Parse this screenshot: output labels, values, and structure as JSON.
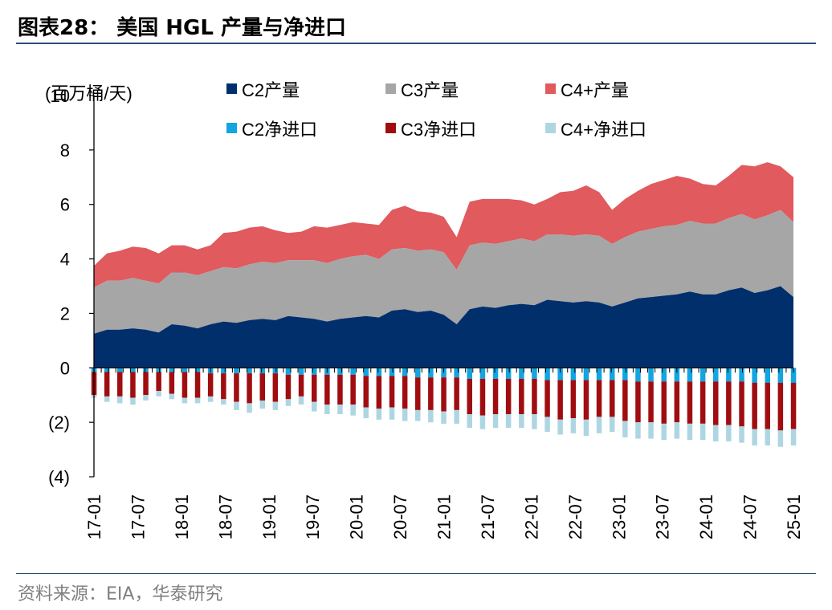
{
  "title": "图表28：  美国 HGL 产量与净进口",
  "source": "资料来源：EIA，华泰研究",
  "colors": {
    "c2_prod": "#002f6c",
    "c3_prod": "#a6a6a6",
    "c4_prod": "#e05a5e",
    "c2_import": "#12a5e0",
    "c3_import": "#a00d10",
    "c4_import": "#aed6e2",
    "rule": "#2a4e7a"
  },
  "chart_data": {
    "type": "area",
    "ylabel": "(百万桶/天)",
    "ylim": [
      -4,
      10
    ],
    "y_ticks": [
      10,
      8,
      6,
      4,
      2,
      0,
      -2,
      -4
    ],
    "y_tick_labels": [
      "10",
      "8",
      "6",
      "4",
      "2",
      "0",
      "(2)",
      "(4)"
    ],
    "x_tick_labels": [
      "17-01",
      "17-07",
      "18-01",
      "18-07",
      "19-01",
      "19-07",
      "20-01",
      "20-07",
      "21-01",
      "21-07",
      "22-01",
      "22-07",
      "23-01",
      "23-07",
      "24-01",
      "24-07",
      "25-01"
    ],
    "legend": [
      "C2产量",
      "C3产量",
      "C4+产量",
      "C2净进口",
      "C3净进口",
      "C4+净进口"
    ],
    "x_start": "2017-01",
    "period": "monthly",
    "series": [
      {
        "name": "C2产量",
        "kind": "area",
        "values": [
          1.25,
          1.4,
          1.4,
          1.45,
          1.4,
          1.3,
          1.6,
          1.55,
          1.45,
          1.6,
          1.7,
          1.65,
          1.75,
          1.8,
          1.75,
          1.9,
          1.85,
          1.8,
          1.7,
          1.8,
          1.85,
          1.9,
          1.85,
          2.1,
          2.15,
          2.05,
          2.1,
          1.95,
          1.6,
          2.15,
          2.25,
          2.2,
          2.3,
          2.35,
          2.3,
          2.5,
          2.45,
          2.4,
          2.45,
          2.4,
          2.25,
          2.4,
          2.55,
          2.6,
          2.65,
          2.7,
          2.8,
          2.7,
          2.7,
          2.85,
          2.95,
          2.75,
          2.85,
          3.0,
          2.6
        ]
      },
      {
        "name": "C3产量",
        "kind": "area",
        "values": [
          1.7,
          1.8,
          1.8,
          1.85,
          1.8,
          1.8,
          1.9,
          1.95,
          1.95,
          1.95,
          2.0,
          2.0,
          2.05,
          2.1,
          2.1,
          2.05,
          2.1,
          2.15,
          2.15,
          2.2,
          2.25,
          2.25,
          2.15,
          2.25,
          2.25,
          2.25,
          2.25,
          2.3,
          2.0,
          2.35,
          2.35,
          2.35,
          2.35,
          2.4,
          2.35,
          2.4,
          2.45,
          2.45,
          2.45,
          2.45,
          2.3,
          2.4,
          2.45,
          2.5,
          2.55,
          2.55,
          2.6,
          2.6,
          2.6,
          2.65,
          2.7,
          2.7,
          2.75,
          2.8,
          2.75
        ]
      },
      {
        "name": "C4+产量",
        "kind": "area",
        "values": [
          0.8,
          1.0,
          1.1,
          1.15,
          1.2,
          1.1,
          1.0,
          1.0,
          0.95,
          0.95,
          1.25,
          1.35,
          1.35,
          1.3,
          1.2,
          1.0,
          1.05,
          1.25,
          1.3,
          1.25,
          1.25,
          1.15,
          1.25,
          1.45,
          1.55,
          1.45,
          1.35,
          1.3,
          1.2,
          1.6,
          1.6,
          1.65,
          1.55,
          1.4,
          1.35,
          1.3,
          1.55,
          1.65,
          1.8,
          1.6,
          1.25,
          1.4,
          1.5,
          1.65,
          1.7,
          1.8,
          1.55,
          1.45,
          1.4,
          1.55,
          1.8,
          1.95,
          1.95,
          1.6,
          1.65
        ]
      },
      {
        "name": "C2净进口",
        "kind": "bar",
        "values": [
          -0.15,
          -0.15,
          -0.15,
          -0.15,
          -0.15,
          -0.15,
          -0.15,
          -0.15,
          -0.15,
          -0.2,
          -0.2,
          -0.2,
          -0.2,
          -0.2,
          -0.2,
          -0.25,
          -0.25,
          -0.25,
          -0.25,
          -0.25,
          -0.25,
          -0.3,
          -0.3,
          -0.3,
          -0.3,
          -0.35,
          -0.35,
          -0.35,
          -0.35,
          -0.4,
          -0.4,
          -0.4,
          -0.4,
          -0.4,
          -0.4,
          -0.45,
          -0.45,
          -0.45,
          -0.45,
          -0.45,
          -0.45,
          -0.45,
          -0.5,
          -0.5,
          -0.5,
          -0.5,
          -0.5,
          -0.5,
          -0.5,
          -0.5,
          -0.5,
          -0.55,
          -0.55,
          -0.55,
          -0.55
        ]
      },
      {
        "name": "C3净进口",
        "kind": "bar",
        "values": [
          -0.85,
          -0.9,
          -0.9,
          -0.95,
          -0.85,
          -0.7,
          -0.8,
          -0.95,
          -0.95,
          -0.85,
          -0.95,
          -1.05,
          -1.1,
          -1.0,
          -1.05,
          -0.9,
          -0.8,
          -1.0,
          -1.1,
          -1.1,
          -1.1,
          -1.15,
          -1.2,
          -1.15,
          -1.2,
          -1.2,
          -1.2,
          -1.25,
          -1.2,
          -1.3,
          -1.35,
          -1.3,
          -1.3,
          -1.3,
          -1.3,
          -1.35,
          -1.45,
          -1.4,
          -1.45,
          -1.35,
          -1.35,
          -1.5,
          -1.5,
          -1.5,
          -1.55,
          -1.5,
          -1.55,
          -1.55,
          -1.6,
          -1.6,
          -1.65,
          -1.7,
          -1.7,
          -1.75,
          -1.7
        ]
      },
      {
        "name": "C4+净进口",
        "kind": "bar",
        "values": [
          -0.1,
          -0.2,
          -0.25,
          -0.25,
          -0.2,
          -0.2,
          -0.2,
          -0.2,
          -0.2,
          -0.2,
          -0.2,
          -0.3,
          -0.35,
          -0.3,
          -0.3,
          -0.25,
          -0.3,
          -0.35,
          -0.35,
          -0.35,
          -0.4,
          -0.4,
          -0.4,
          -0.45,
          -0.45,
          -0.4,
          -0.45,
          -0.45,
          -0.5,
          -0.5,
          -0.5,
          -0.5,
          -0.5,
          -0.5,
          -0.55,
          -0.55,
          -0.55,
          -0.55,
          -0.6,
          -0.6,
          -0.55,
          -0.6,
          -0.6,
          -0.6,
          -0.6,
          -0.6,
          -0.6,
          -0.6,
          -0.6,
          -0.6,
          -0.6,
          -0.6,
          -0.6,
          -0.6,
          -0.6
        ]
      }
    ],
    "grid": false,
    "legend_position": "top"
  }
}
